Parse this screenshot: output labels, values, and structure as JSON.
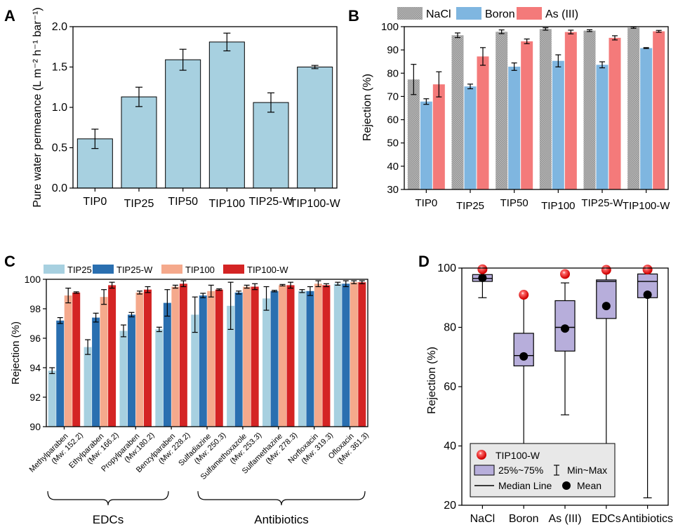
{
  "chart_data": [
    {
      "panel": "A",
      "type": "bar",
      "ylabel": "Pure water permeance (L m⁻² h⁻¹ bar⁻¹)",
      "ylim": [
        0,
        2.0
      ],
      "yticks": [
        "0.0",
        "0.5",
        "1.0",
        "1.5",
        "2.0"
      ],
      "categories": [
        "TIP0",
        "TIP25",
        "TIP50",
        "TIP100",
        "TIP25-W",
        "TIP100-W"
      ],
      "values": [
        0.61,
        1.13,
        1.59,
        1.81,
        1.06,
        1.5
      ],
      "errors": [
        0.12,
        0.12,
        0.13,
        0.11,
        0.12,
        0.02
      ],
      "color": "#a7d0e0"
    },
    {
      "panel": "B",
      "type": "bar",
      "ylabel": "Rejection (%)",
      "ylim": [
        30,
        100
      ],
      "yticks": [
        "30",
        "40",
        "50",
        "60",
        "70",
        "80",
        "90",
        "100"
      ],
      "categories": [
        "TIP0",
        "TIP25",
        "TIP50",
        "TIP100",
        "TIP25-W",
        "TIP100-W"
      ],
      "legend_position": "top",
      "series": [
        {
          "name": "NaCl",
          "color": "#a9a9a9",
          "values": [
            77.3,
            96.3,
            97.8,
            99.0,
            98.3,
            99.6
          ],
          "errors": [
            6.5,
            1.0,
            0.8,
            0.5,
            0.4,
            0.3
          ]
        },
        {
          "name": "Boron",
          "color": "#7fb6e0",
          "values": [
            67.8,
            74.3,
            82.8,
            85.3,
            83.6,
            90.8
          ],
          "errors": [
            1.2,
            1.0,
            1.6,
            2.6,
            1.3,
            0.2
          ]
        },
        {
          "name": "As (III)",
          "color": "#f47a7a",
          "values": [
            75.2,
            87.2,
            93.7,
            97.7,
            95.2,
            98.0
          ],
          "errors": [
            5.4,
            3.8,
            1.0,
            0.8,
            0.9,
            0.4
          ]
        }
      ]
    },
    {
      "panel": "C",
      "type": "bar",
      "ylabel": "Rejection (%)",
      "ylim": [
        90,
        100
      ],
      "yticks": [
        "90",
        "92",
        "94",
        "96",
        "98",
        "100"
      ],
      "categories": [
        "Methylparaben (Mw: 152.2)",
        "Ethylparaben (Mw: 166.2)",
        "Propylparaben (Mw:180.2)",
        "Benzylparaben (Mw: 228.2)",
        "Sulfadiazine (Mw: 250.3)",
        "Sulfamethoxazole (Mw: 253.3)",
        "Sulfamethazine (Mw: 278.3)",
        "Norfloxacin (Mw: 319.3)",
        "Ofloxacin (Mw: 361.3)"
      ],
      "legend_position": "top",
      "groups": [
        "EDCs",
        "Antibiotics"
      ],
      "series": [
        {
          "name": "TIP25",
          "color": "#a7d0e0",
          "values": [
            93.8,
            95.4,
            96.5,
            96.6,
            97.6,
            98.2,
            98.7,
            99.2,
            99.7
          ],
          "errors": [
            0.2,
            0.5,
            0.4,
            0.15,
            1.2,
            1.6,
            0.8,
            0.1,
            0.1
          ]
        },
        {
          "name": "TIP25-W",
          "color": "#2a6fb0",
          "values": [
            97.2,
            97.4,
            97.6,
            98.4,
            98.9,
            99.1,
            99.2,
            99.2,
            99.7
          ],
          "errors": [
            0.2,
            0.3,
            0.15,
            0.9,
            0.15,
            0.1,
            0.05,
            0.3,
            0.2
          ]
        },
        {
          "name": "TIP100",
          "color": "#f5a98c",
          "values": [
            98.9,
            98.8,
            99.1,
            99.5,
            99.2,
            99.5,
            99.6,
            99.7,
            99.8
          ],
          "errors": [
            0.5,
            0.5,
            0.1,
            0.1,
            0.4,
            0.1,
            0.05,
            0.2,
            0.1
          ]
        },
        {
          "name": "TIP100-W",
          "color": "#d42424",
          "values": [
            99.1,
            99.6,
            99.3,
            99.7,
            99.3,
            99.5,
            99.6,
            99.6,
            99.8
          ],
          "errors": [
            0.05,
            0.2,
            0.2,
            0.2,
            0.05,
            0.2,
            0.2,
            0.1,
            0.1
          ]
        }
      ]
    },
    {
      "panel": "D",
      "type": "box",
      "ylabel": "Rejection (%)",
      "ylim": [
        20,
        100
      ],
      "yticks": [
        "20",
        "40",
        "60",
        "80",
        "100"
      ],
      "categories": [
        "NaCl",
        "Boron",
        "As (III)",
        "EDCs",
        "Antibiotics"
      ],
      "boxes": [
        {
          "min": 90,
          "q1": 95.5,
          "median": 96.5,
          "q3": 97.8,
          "max": 99.5,
          "mean": 96.7
        },
        {
          "min": 39,
          "q1": 67,
          "median": 70.5,
          "q3": 78,
          "max": 91,
          "mean": 70.2
        },
        {
          "min": 50.5,
          "q1": 72,
          "median": 80,
          "q3": 89,
          "max": 95,
          "mean": 79.6
        },
        {
          "min": 36,
          "q1": 83,
          "median": 95.5,
          "q3": 96,
          "max": 99.5,
          "mean": 87.2
        },
        {
          "min": 22.5,
          "q1": 90,
          "median": 95.5,
          "q3": 98,
          "max": 99.5,
          "mean": 91
        }
      ],
      "tip100w": [
        99.6,
        91.0,
        98.0,
        99.4,
        99.5
      ],
      "box_color": "#b7aedb",
      "legend": {
        "highlight": "TIP100-W",
        "box": "25%~75%",
        "whisker": "Min~Max",
        "median": "Median Line",
        "mean": "Mean"
      }
    }
  ],
  "panel_labels": [
    "A",
    "B",
    "C",
    "D"
  ],
  "axis_names": [
    "Pure water permeance (L m⁻² h⁻¹ bar⁻¹)",
    "Rejection (%)",
    "Rejection (%)",
    "Rejection (%)"
  ]
}
